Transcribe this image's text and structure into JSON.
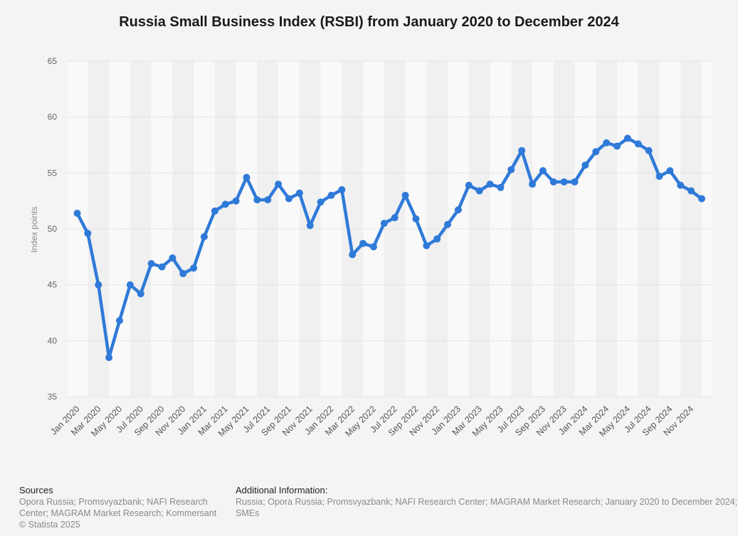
{
  "title": "Russia Small Business Index (RSBI) from January 2020 to December 2024",
  "chart_data": {
    "type": "line",
    "title": "Russia Small Business Index (RSBI) from January 2020 to December 2024",
    "ylabel": "Index points",
    "xlabel": "",
    "ylim": [
      35,
      65
    ],
    "yticks": [
      35,
      40,
      45,
      50,
      55,
      60,
      65
    ],
    "grid": true,
    "color": "#2f7ad8",
    "tick_labels": [
      "Jan 2020",
      "Mar 2020",
      "May 2020",
      "Jul 2020",
      "Sep 2020",
      "Nov 2020",
      "Jan 2021",
      "Mar 2021",
      "May 2021",
      "Jul 2021",
      "Sep 2021",
      "Nov 2021",
      "Jan 2022",
      "Mar 2022",
      "May 2022",
      "Jul 2022",
      "Sep 2022",
      "Nov 2022",
      "Jan 2023",
      "Mar 2023",
      "May 2023",
      "Jul 2023",
      "Sep 2023",
      "Nov 2023",
      "Jan 2024",
      "Mar 2024",
      "May 2024",
      "Jul 2024",
      "Sep 2024",
      "Nov 2024"
    ],
    "x": [
      "Jan 2020",
      "Feb 2020",
      "Mar 2020",
      "Apr 2020",
      "May 2020",
      "Jun 2020",
      "Jul 2020",
      "Aug 2020",
      "Sep 2020",
      "Oct 2020",
      "Nov 2020",
      "Dec 2020",
      "Jan 2021",
      "Feb 2021",
      "Mar 2021",
      "Apr 2021",
      "May 2021",
      "Jun 2021",
      "Jul 2021",
      "Aug 2021",
      "Sep 2021",
      "Oct 2021",
      "Nov 2021",
      "Dec 2021",
      "Jan 2022",
      "Feb 2022",
      "Mar 2022",
      "Apr 2022",
      "May 2022",
      "Jun 2022",
      "Jul 2022",
      "Aug 2022",
      "Sep 2022",
      "Oct 2022",
      "Nov 2022",
      "Dec 2022",
      "Jan 2023",
      "Feb 2023",
      "Mar 2023",
      "Apr 2023",
      "May 2023",
      "Jun 2023",
      "Jul 2023",
      "Aug 2023",
      "Sep 2023",
      "Oct 2023",
      "Nov 2023",
      "Dec 2023",
      "Jan 2024",
      "Feb 2024",
      "Mar 2024",
      "Apr 2024",
      "May 2024",
      "Jun 2024",
      "Jul 2024",
      "Aug 2024",
      "Sep 2024",
      "Oct 2024",
      "Nov 2024",
      "Dec 2024"
    ],
    "values": [
      51.4,
      49.6,
      45.0,
      38.5,
      41.8,
      45.0,
      44.2,
      46.9,
      46.6,
      47.4,
      46.0,
      46.5,
      49.3,
      51.6,
      52.2,
      52.5,
      54.6,
      52.6,
      52.6,
      54.0,
      52.7,
      53.2,
      50.3,
      52.4,
      53.0,
      53.5,
      47.7,
      48.7,
      48.4,
      50.5,
      51.0,
      53.0,
      50.9,
      48.5,
      49.1,
      50.4,
      51.7,
      53.9,
      53.4,
      54.0,
      53.7,
      55.3,
      57.0,
      54.0,
      55.2,
      54.2,
      54.2,
      54.2,
      55.7,
      56.9,
      57.7,
      57.4,
      58.1,
      57.6,
      57.0,
      54.7,
      55.2,
      53.9,
      53.4,
      52.7
    ]
  },
  "footer": {
    "sources_header": "Sources",
    "sources_text": "Opora Russia; Promsvyazbank; NAFI Research Center; MAGRAM Market Research; Kommersant",
    "copyright": "© Statista 2025",
    "additional_header": "Additional Information:",
    "additional_text": "Russia; Opora Russia; Promsvyazbank; NAFI Research Center; MAGRAM Market Research; January 2020 to December 2024; SMEs"
  }
}
